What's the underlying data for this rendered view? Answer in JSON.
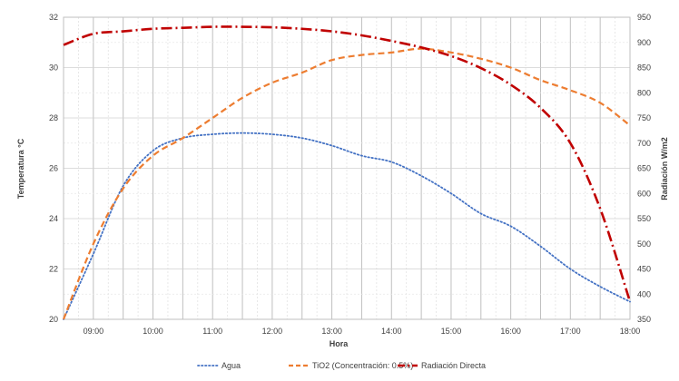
{
  "chart_data": {
    "type": "line",
    "xlabel": "Hora",
    "ylabel_left": "Temperatura °C",
    "ylabel_right": "Radiación W/m2",
    "x_range": [
      8.5,
      18.0
    ],
    "y_left_range": [
      20,
      32
    ],
    "y_right_range": [
      350,
      950
    ],
    "y_left_ticks": [
      "20",
      "22",
      "24",
      "26",
      "28",
      "30",
      "32"
    ],
    "y_right_ticks": [
      "350",
      "400",
      "450",
      "500",
      "550",
      "600",
      "650",
      "700",
      "750",
      "800",
      "850",
      "900",
      "950"
    ],
    "x_ticks": [
      {
        "x": 9,
        "label": "09:00"
      },
      {
        "x": 10,
        "label": "10:00"
      },
      {
        "x": 11,
        "label": "11:00"
      },
      {
        "x": 12,
        "label": "12:00"
      },
      {
        "x": 13,
        "label": "13:00"
      },
      {
        "x": 14,
        "label": "14:00"
      },
      {
        "x": 15,
        "label": "15:00"
      },
      {
        "x": 16,
        "label": "16:00"
      },
      {
        "x": 17,
        "label": "17:00"
      },
      {
        "x": 18,
        "label": "18:00"
      }
    ],
    "grid": true,
    "legend_position": "bottom",
    "series": [
      {
        "name": "Agua",
        "axis": "left",
        "color": "#4472C4",
        "style": "dotted",
        "x": [
          8.5,
          9.0,
          9.5,
          10.0,
          10.5,
          11.0,
          11.5,
          12.0,
          12.5,
          13.0,
          13.5,
          14.0,
          14.5,
          15.0,
          15.5,
          16.0,
          16.5,
          17.0,
          17.5,
          18.0
        ],
        "y": [
          20.0,
          22.6,
          25.3,
          26.7,
          27.2,
          27.35,
          27.4,
          27.35,
          27.2,
          26.9,
          26.5,
          26.25,
          25.7,
          25.0,
          24.2,
          23.7,
          22.9,
          22.0,
          21.3,
          20.7
        ]
      },
      {
        "name": "TiO2 (Concentración: 0.5%)",
        "axis": "left",
        "color": "#ED7D31",
        "style": "dashed",
        "x": [
          8.5,
          9.0,
          9.5,
          10.0,
          10.5,
          11.0,
          11.5,
          12.0,
          12.5,
          13.0,
          13.5,
          14.0,
          14.5,
          15.0,
          15.5,
          16.0,
          16.5,
          17.0,
          17.5,
          18.0
        ],
        "y": [
          20.0,
          23.0,
          25.2,
          26.5,
          27.2,
          28.0,
          28.8,
          29.4,
          29.8,
          30.3,
          30.5,
          30.6,
          30.75,
          30.6,
          30.35,
          30.0,
          29.5,
          29.1,
          28.6,
          27.7
        ]
      },
      {
        "name": "Radiación Directa",
        "axis": "right",
        "color": "#C00000",
        "style": "dashdot",
        "x": [
          8.5,
          9.0,
          9.5,
          10.0,
          10.5,
          11.0,
          11.5,
          12.0,
          12.5,
          13.0,
          13.5,
          14.0,
          14.5,
          15.0,
          15.5,
          16.0,
          16.5,
          17.0,
          17.5,
          18.0
        ],
        "y": [
          895,
          917,
          922,
          927,
          929,
          931,
          931,
          930,
          927,
          922,
          914,
          903,
          890,
          873,
          849,
          816,
          770,
          700,
          570,
          385
        ]
      }
    ]
  }
}
